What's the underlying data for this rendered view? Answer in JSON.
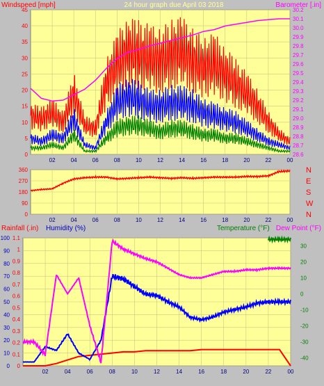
{
  "chart_data": [
    {
      "type": "line",
      "title": "24 hour graph due   April 03 2018",
      "ylabel_left": "Windspeed [mph]",
      "ylabel_right": "Barometer [.in]",
      "x_ticks": [
        "02",
        "04",
        "06",
        "08",
        "10",
        "12",
        "14",
        "16",
        "18",
        "20",
        "22",
        "00"
      ],
      "y_left_ticks": [
        "0",
        "5",
        "10",
        "15",
        "20",
        "25",
        "30",
        "35",
        "40",
        "45"
      ],
      "y_left_lim": [
        0,
        45
      ],
      "y_right_ticks": [
        "28.6",
        "28.7",
        "28.8",
        "28.9",
        "29.0",
        "29.1",
        "29.2",
        "29.3",
        "29.4",
        "29.5",
        "29.6",
        "29.7",
        "29.8",
        "29.9",
        "30.0",
        "30.1",
        "30.2"
      ],
      "y_right_lim": [
        28.6,
        30.2
      ],
      "x": [
        0,
        1,
        2,
        3,
        4,
        5,
        6,
        7,
        8,
        9,
        10,
        11,
        12,
        13,
        14,
        15,
        16,
        17,
        18,
        19,
        20,
        21,
        22,
        23,
        24
      ],
      "series": [
        {
          "color": "#ff0000",
          "values": [
            12,
            11,
            13,
            10,
            19,
            9,
            8,
            22,
            28,
            32,
            31,
            30,
            29,
            31,
            32,
            29,
            27,
            28,
            25,
            22,
            19,
            15,
            10,
            6,
            4
          ]
        },
        {
          "color": "#0000ff",
          "values": [
            5,
            4,
            6,
            5,
            11,
            3,
            2,
            10,
            16,
            18,
            17,
            15,
            15,
            16,
            16,
            15,
            13,
            12,
            11,
            10,
            8,
            6,
            4,
            3,
            2
          ]
        },
        {
          "color": "#008000",
          "values": [
            2,
            2,
            3,
            2,
            6,
            1,
            1,
            5,
            8,
            9,
            9,
            8,
            7,
            8,
            8,
            7,
            6,
            6,
            5,
            5,
            4,
            3,
            2,
            1,
            1
          ]
        },
        {
          "color": "#ff00ff",
          "axis": "right",
          "values": [
            29.33,
            29.22,
            29.19,
            29.2,
            29.26,
            29.32,
            29.42,
            29.55,
            29.66,
            29.73,
            29.76,
            29.8,
            29.83,
            29.86,
            29.89,
            29.92,
            29.96,
            29.98,
            30.02,
            30.04,
            30.06,
            30.08,
            30.09,
            30.1,
            30.1
          ]
        }
      ]
    },
    {
      "type": "line",
      "x_ticks": [
        "02",
        "04",
        "06",
        "08",
        "10",
        "12",
        "14",
        "16",
        "18",
        "20",
        "22",
        "00"
      ],
      "y_left_ticks": [
        "0",
        "90",
        "180",
        "270",
        "360"
      ],
      "y_left_lim": [
        0,
        360
      ],
      "y_right_labels": [
        "N",
        "W",
        "S",
        "E",
        "N"
      ],
      "x": [
        0,
        1,
        2,
        3,
        4,
        5,
        6,
        7,
        8,
        9,
        10,
        11,
        12,
        13,
        14,
        15,
        16,
        17,
        18,
        19,
        20,
        21,
        22,
        23,
        24
      ],
      "series": [
        {
          "color": "#ff0000",
          "values": [
            190,
            200,
            205,
            250,
            285,
            295,
            300,
            300,
            285,
            290,
            295,
            300,
            295,
            290,
            295,
            290,
            295,
            300,
            300,
            300,
            305,
            305,
            310,
            345,
            350
          ]
        }
      ]
    },
    {
      "type": "line",
      "ylabel_left": "Rainfall (.in)",
      "ylabel_left2": "Humidity (%)",
      "ylabel_right": "Temperature (°F)",
      "ylabel_right2": "Dew Point (°F)",
      "x_ticks": [
        "02",
        "04",
        "06",
        "08",
        "10",
        "12",
        "14",
        "16",
        "18",
        "20",
        "22",
        "00"
      ],
      "humidity_ticks": [
        "0",
        "10",
        "20",
        "30",
        "40",
        "50",
        "60",
        "70",
        "80",
        "90",
        "100"
      ],
      "humidity_lim": [
        0,
        100
      ],
      "rain_ticks": [
        "0",
        "0.1",
        "0.2",
        "0.3",
        "0.4",
        "0.5",
        "0.6",
        "0.7",
        "0.8",
        "0.9",
        "1",
        "1.1"
      ],
      "rain_lim": [
        0,
        1.1
      ],
      "temp_ticks": [
        "-40",
        "-30",
        "-20",
        "-10",
        "0",
        "10",
        "20",
        "30"
      ],
      "temp_lim": [
        -45,
        35
      ],
      "x": [
        0,
        1,
        2,
        3,
        4,
        5,
        6,
        7,
        8,
        9,
        10,
        11,
        12,
        13,
        14,
        15,
        16,
        17,
        18,
        19,
        20,
        21,
        22,
        23,
        24
      ],
      "series": [
        {
          "color": "#ff0000",
          "axis": "rain",
          "values": [
            0,
            0,
            0,
            0.02,
            0.05,
            0.08,
            0.09,
            0.1,
            0.11,
            0.12,
            0.12,
            0.13,
            0.13,
            0.13,
            0.13,
            0.13,
            0.14,
            0.14,
            0.14,
            0.14,
            0.14,
            0.14,
            0.14,
            0.14,
            0
          ]
        },
        {
          "color": "#0000ff",
          "axis": "humidity",
          "values": [
            3,
            3,
            15,
            12,
            25,
            10,
            5,
            20,
            70,
            68,
            62,
            56,
            55,
            50,
            46,
            38,
            36,
            38,
            42,
            44,
            46,
            49,
            50,
            50,
            50
          ]
        },
        {
          "color": "#ff00ff",
          "axis": "temp",
          "values": [
            -30,
            -30,
            -38,
            12,
            0,
            10,
            -20,
            -43,
            33,
            28,
            25,
            22,
            20,
            16,
            12,
            10,
            10,
            12,
            14,
            14,
            15,
            15,
            16,
            16,
            16
          ]
        },
        {
          "color": "#008000",
          "axis": "temp",
          "values": [
            null,
            null,
            null,
            null,
            null,
            null,
            null,
            null,
            null,
            null,
            null,
            null,
            null,
            null,
            null,
            null,
            null,
            null,
            null,
            null,
            null,
            null,
            34,
            34,
            34
          ]
        }
      ]
    }
  ]
}
